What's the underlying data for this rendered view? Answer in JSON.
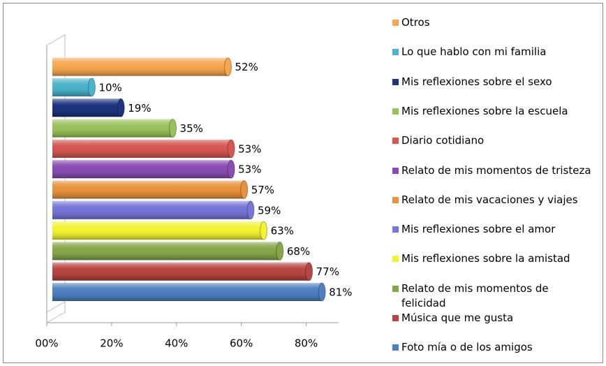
{
  "chart_data": {
    "type": "bar",
    "orientation": "horizontal",
    "categories": [
      "Foto mía o de los amigos",
      "Música que me gusta",
      "Relato de mis momentos de felicidad",
      "Mis reflexiones sobre la amistad",
      "Mis reflexiones sobre el amor",
      "Relato de mis vacaciones y viajes",
      "Relato de mis momentos de tristeza",
      "Diario cotidiano",
      "Mis reflexiones sobre la escuela",
      "Mis reflexiones sobre el sexo",
      "Lo que hablo con mi familia",
      "Otros"
    ],
    "values": [
      81,
      77,
      68,
      63,
      59,
      57,
      53,
      53,
      35,
      19,
      10,
      52
    ],
    "value_labels": [
      "81%",
      "77%",
      "68%",
      "63%",
      "59%",
      "57%",
      "53%",
      "53%",
      "35%",
      "19%",
      "10%",
      "52%"
    ],
    "colors": [
      "#4f7fbf",
      "#b84541",
      "#86a64a",
      "#f2f231",
      "#7676d6",
      "#e8923e",
      "#8a4bb3",
      "#d45752",
      "#9cc15c",
      "#1e3380",
      "#4bb3ca",
      "#f5a64f"
    ],
    "xlim": [
      0,
      90
    ],
    "xticks": [
      {
        "value": 0,
        "label": "00%"
      },
      {
        "value": 20,
        "label": "20%"
      },
      {
        "value": 40,
        "label": "40%"
      },
      {
        "value": 60,
        "label": "60%"
      },
      {
        "value": 80,
        "label": "80%"
      }
    ],
    "legend": "right"
  }
}
